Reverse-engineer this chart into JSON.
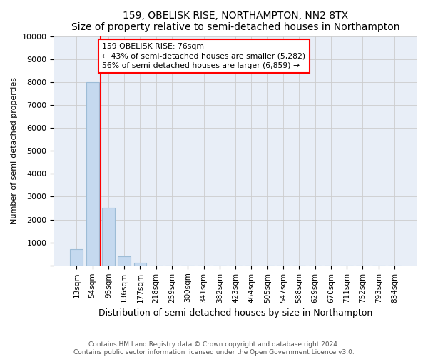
{
  "title": "159, OBELISK RISE, NORTHAMPTON, NN2 8TX",
  "subtitle": "Size of property relative to semi-detached houses in Northampton",
  "xlabel": "Distribution of semi-detached houses by size in Northampton",
  "ylabel": "Number of semi-detached properties",
  "categories": [
    "13sqm",
    "54sqm",
    "95sqm",
    "136sqm",
    "177sqm",
    "218sqm",
    "259sqm",
    "300sqm",
    "341sqm",
    "382sqm",
    "423sqm",
    "464sqm",
    "505sqm",
    "547sqm",
    "588sqm",
    "629sqm",
    "670sqm",
    "711sqm",
    "752sqm",
    "793sqm",
    "834sqm"
  ],
  "values": [
    700,
    8000,
    2500,
    400,
    130,
    0,
    0,
    0,
    0,
    0,
    0,
    0,
    0,
    0,
    0,
    0,
    0,
    0,
    0,
    0,
    0
  ],
  "bar_color": "#c5d9ef",
  "bar_edge_color": "#9dbcd6",
  "red_line_x": 1.5,
  "annotation_text": "159 OBELISK RISE: 76sqm\n← 43% of semi-detached houses are smaller (5,282)\n56% of semi-detached houses are larger (6,859) →",
  "annotation_box_color": "white",
  "annotation_box_edge_color": "red",
  "red_line_color": "red",
  "ylim": [
    0,
    10000
  ],
  "yticks": [
    0,
    1000,
    2000,
    3000,
    4000,
    5000,
    6000,
    7000,
    8000,
    9000,
    10000
  ],
  "grid_color": "#cccccc",
  "background_color": "#e8eef7",
  "footer_line1": "Contains HM Land Registry data © Crown copyright and database right 2024.",
  "footer_line2": "Contains public sector information licensed under the Open Government Licence v3.0."
}
